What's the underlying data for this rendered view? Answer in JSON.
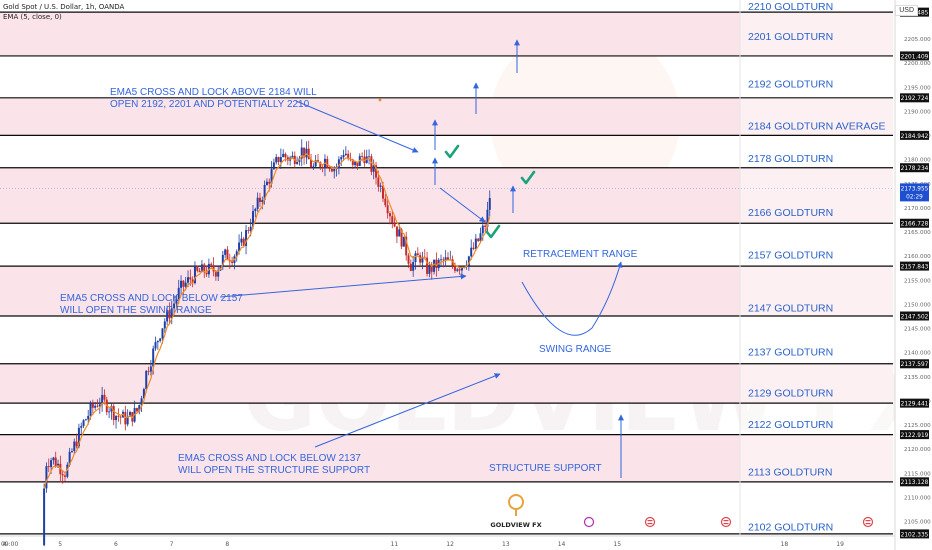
{
  "header": {
    "symbol_line": "Gold Spot / U.S. Dollar, 1h, OANDA",
    "ema_line": "EMA (5, close, 0)"
  },
  "currency": "USD",
  "colors": {
    "zone_fill": "#fbe3ea",
    "level_line": "#0a0a0a",
    "level_text": "#2962c8",
    "candle_up": "#1e3fa6",
    "candle_down": "#c42a2a",
    "ema": "#f08a24",
    "annotation": "#3366dd",
    "check": "#1aa37a",
    "logo": "#e8a33d"
  },
  "chart_data": {
    "type": "candlestick",
    "title": "Gold Spot / U.S. Dollar, 1h, OANDA",
    "currency": "USD",
    "y_range": [
      2099,
      2213
    ],
    "y_ticks": [
      2105,
      2110,
      2115,
      2120,
      2125,
      2130,
      2135,
      2140,
      2145,
      2150,
      2155,
      2160,
      2165,
      2170,
      2175,
      2180,
      2185,
      2190,
      2195,
      2200,
      2205
    ],
    "x_range_days": [
      3.92,
      19.95
    ],
    "x_ticks": [
      {
        "day": 4,
        "label": "4"
      },
      {
        "day": 5,
        "label": "5"
      },
      {
        "day": 6,
        "label": "6"
      },
      {
        "day": 7,
        "label": "7"
      },
      {
        "day": 8,
        "label": "8"
      },
      {
        "day": 11,
        "label": "11"
      },
      {
        "day": 12,
        "label": "12"
      },
      {
        "day": 13,
        "label": "13"
      },
      {
        "day": 14,
        "label": "14"
      },
      {
        "day": 15,
        "label": "15"
      },
      {
        "day": 18,
        "label": "18"
      },
      {
        "day": 19,
        "label": "19"
      }
    ],
    "x_start_label": "09:00",
    "levels": [
      {
        "value": 2210.485,
        "axis_label": "2210.485",
        "label": "2210 GOLDTURN",
        "label_price": 2211.8
      },
      {
        "value": 2201.409,
        "axis_label": "2201.409",
        "label": "2201 GOLDTURN",
        "label_price": 2205.5
      },
      {
        "value": 2192.724,
        "axis_label": "2192.724",
        "label": "2192 GOLDTURN",
        "label_price": 2195.7
      },
      {
        "value": 2184.942,
        "axis_label": "2184.942",
        "label": "2184 GOLDTURN AVERAGE",
        "label_price": 2187.0
      },
      {
        "value": 2178.234,
        "axis_label": "2178.234",
        "label": "2178 GOLDTURN",
        "label_price": 2180.2
      },
      {
        "value": 2166.728,
        "axis_label": "2166.728",
        "label": "2166 GOLDTURN",
        "label_price": 2169.1
      },
      {
        "value": 2157.843,
        "axis_label": "2157.843",
        "label": "2157 GOLDTURN",
        "label_price": 2160.2
      },
      {
        "value": 2147.502,
        "axis_label": "2147.502",
        "label": "2147 GOLDTURN",
        "label_price": 2149.3
      },
      {
        "value": 2137.597,
        "axis_label": "2137.597",
        "label": "2137 GOLDTURN",
        "label_price": 2140.1
      },
      {
        "value": 2129.441,
        "axis_label": "2129.441",
        "label": "2129 GOLDTURN",
        "label_price": 2131.6
      },
      {
        "value": 2122.919,
        "axis_label": "2122.919",
        "label": "2122 GOLDTURN",
        "label_price": 2125.1
      },
      {
        "value": 2113.128,
        "axis_label": "2113.128",
        "label": "2113 GOLDTURN",
        "label_price": 2115.3
      },
      {
        "value": 2102.335,
        "axis_label": "2102.335",
        "label": "2102 GOLDTURN",
        "label_price": 2103.9
      }
    ],
    "zones": [
      {
        "from": 2201.409,
        "to": 2210.485
      },
      {
        "from": 2184.942,
        "to": 2192.724
      },
      {
        "from": 2166.728,
        "to": 2178.234
      },
      {
        "from": 2147.502,
        "to": 2157.843
      },
      {
        "from": 2129.441,
        "to": 2137.597
      },
      {
        "from": 2113.128,
        "to": 2122.919
      }
    ],
    "current_price": {
      "value": 2173.955,
      "label": "2173.955",
      "countdown": "02:29"
    },
    "price_path": [
      [
        4.67,
        2100
      ],
      [
        4.73,
        2117
      ],
      [
        4.85,
        2118
      ],
      [
        5.1,
        2115
      ],
      [
        5.2,
        2119
      ],
      [
        5.4,
        2125
      ],
      [
        5.55,
        2128
      ],
      [
        5.7,
        2130
      ],
      [
        5.85,
        2129
      ],
      [
        6.0,
        2127
      ],
      [
        6.2,
        2126
      ],
      [
        6.4,
        2128
      ],
      [
        6.55,
        2136
      ],
      [
        6.7,
        2141
      ],
      [
        6.85,
        2146
      ],
      [
        7.0,
        2149
      ],
      [
        7.15,
        2153
      ],
      [
        7.4,
        2156
      ],
      [
        7.6,
        2157
      ],
      [
        7.8,
        2157
      ],
      [
        7.95,
        2160
      ],
      [
        8.1,
        2160
      ],
      [
        8.25,
        2162
      ],
      [
        8.45,
        2168
      ],
      [
        8.6,
        2172
      ],
      [
        8.75,
        2176
      ],
      [
        8.95,
        2181
      ],
      [
        9.15,
        2180
      ],
      [
        9.35,
        2182
      ],
      [
        9.55,
        2178
      ],
      [
        9.75,
        2180
      ],
      [
        9.95,
        2178
      ],
      [
        10.1,
        2182
      ],
      [
        10.25,
        2178
      ],
      [
        10.45,
        2181
      ],
      [
        10.65,
        2177
      ],
      [
        10.8,
        2173
      ],
      [
        10.95,
        2168
      ],
      [
        11.05,
        2165
      ],
      [
        11.15,
        2163
      ],
      [
        11.3,
        2158
      ],
      [
        11.45,
        2160
      ],
      [
        11.6,
        2157
      ],
      [
        11.75,
        2158
      ],
      [
        11.9,
        2159
      ],
      [
        12.05,
        2158
      ],
      [
        12.2,
        2158
      ],
      [
        12.35,
        2160
      ],
      [
        12.5,
        2163
      ],
      [
        12.65,
        2167
      ],
      [
        12.72,
        2173
      ],
      [
        12.75,
        2174
      ]
    ],
    "annotations": {
      "ema_above": [
        "EMA5 CROSS AND LOCK ABOVE 2184 WILL",
        "OPEN 2192, 2201 AND POTENTIALLY 2210"
      ],
      "ema_below_2157": [
        "EMA5 CROSS AND LOCK BELOW 2157",
        "WILL OPEN THE SWING RANGE"
      ],
      "ema_below_2137": [
        "EMA5 CROSS AND LOCK BELOW 2137",
        "WILL OPEN THE STRUCTURE SUPPORT"
      ],
      "retracement_range": "RETRACEMENT RANGE",
      "swing_range": "SWING RANGE",
      "structure_support": "STRUCTURE SUPPORT"
    }
  },
  "watermark": "GOLDVIEW FX",
  "logo_text": "GOLDVIEW FX"
}
